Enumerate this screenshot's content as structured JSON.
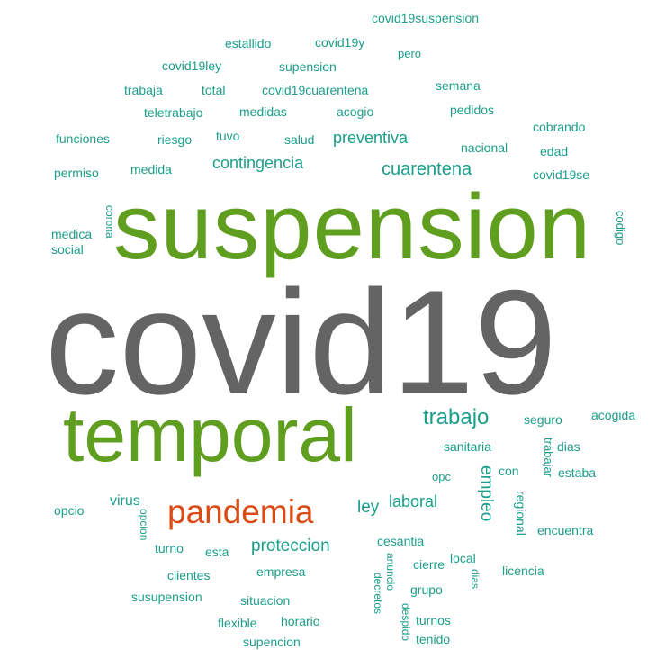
{
  "words": {
    "covid19suspension": "covid19suspension",
    "estallido": "estallido",
    "covid19y": "covid19y",
    "pero": "pero",
    "covid19ley": "covid19ley",
    "supension": "supension",
    "trabaja": "trabaja",
    "total": "total",
    "covid19cuarentena": "covid19cuarentena",
    "semana": "semana",
    "teletrabajo": "teletrabajo",
    "medidas": "medidas",
    "acogio": "acogio",
    "pedidos": "pedidos",
    "cobrando": "cobrando",
    "funciones": "funciones",
    "riesgo": "riesgo",
    "tuvo": "tuvo",
    "salud": "salud",
    "preventiva": "preventiva",
    "nacional": "nacional",
    "edad": "edad",
    "permiso": "permiso",
    "medida": "medida",
    "contingencia": "contingencia",
    "cuarentena": "cuarentena",
    "covid19se": "covid19se",
    "medica": "medica",
    "social": "social",
    "corona": "corona",
    "suspension": "suspension",
    "codigo": "codigo",
    "covid19": "covid19",
    "temporal": "temporal",
    "trabajo": "trabajo",
    "seguro": "seguro",
    "acogida": "acogida",
    "sanitaria": "sanitaria",
    "trabajar": "trabajar",
    "dias": "dias",
    "opc": "opc",
    "con": "con",
    "estaba": "estaba",
    "opcio": "opcio",
    "virus": "virus",
    "opcion": "opcion",
    "pandemia": "pandemia",
    "ley": "ley",
    "laboral": "laboral",
    "empleo": "empleo",
    "regional": "regional",
    "encuentra": "encuentra",
    "turno": "turno",
    "esta": "esta",
    "proteccion": "proteccion",
    "cesantia": "cesantia",
    "cierre": "cierre",
    "local": "local",
    "clientes": "clientes",
    "empresa": "empresa",
    "anuncio": "anuncio",
    "licencia": "licencia",
    "susupension": "susupension",
    "situacion": "situacion",
    "grupo": "grupo",
    "flexible": "flexible",
    "horario": "horario",
    "despido": "despido",
    "turnos": "turnos",
    "supencion": "supencion",
    "tenido": "tenido",
    "decretos": "decretos"
  },
  "colors": {
    "teal": "#1b9e8a",
    "green": "#5f9e1f",
    "gray": "#646464",
    "orange": "#d94a14"
  }
}
